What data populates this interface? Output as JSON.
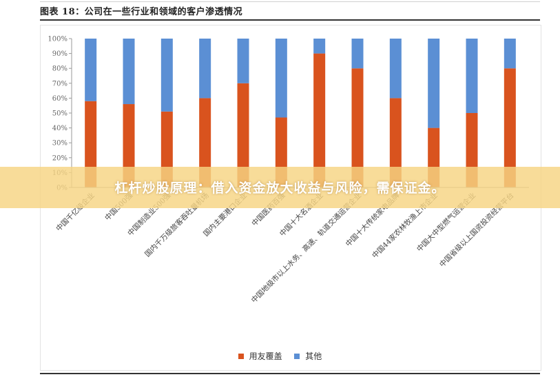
{
  "figure": {
    "title": "图表 18：公司在一些行业和领域的客户渗透情况"
  },
  "banner": {
    "text": "杠杆炒股原理：借入资金放大收益与风险，需保证金。"
  },
  "colors": {
    "series_primary": "#D9531E",
    "series_secondary": "#5B8FD4",
    "banner_bg": "#F6D482"
  },
  "chart_data": {
    "type": "bar",
    "stacked": true,
    "title": "",
    "xlabel": "",
    "ylabel": "",
    "ylim": [
      0,
      100
    ],
    "y_ticks": [
      "0%",
      "10%",
      "20%",
      "30%",
      "40%",
      "50%",
      "60%",
      "70%",
      "80%",
      "90%",
      "100%"
    ],
    "grid": false,
    "legend_position": "bottom",
    "categories": [
      "中国千亿级企业",
      "中国500强",
      "中国制造业500强",
      "国内千万级旅客吞吐量机场",
      "国内主要港口企业",
      "中国医药百强",
      "中国十大名酒企业",
      "中国地级市以上水务、高速、轨道交通运营企业",
      "中国十大传统家电品牌",
      "中国44家农林牧渔上市企业",
      "中国大中型燃气运营企业",
      "中国省级以上国资投资经营平台"
    ],
    "series": [
      {
        "name": "用友覆盖",
        "values": [
          58,
          56,
          51,
          60,
          70,
          47,
          90,
          80,
          60,
          40,
          50,
          80
        ]
      },
      {
        "name": "其他",
        "values": [
          42,
          44,
          49,
          40,
          30,
          53,
          10,
          20,
          40,
          60,
          50,
          20
        ]
      }
    ]
  }
}
